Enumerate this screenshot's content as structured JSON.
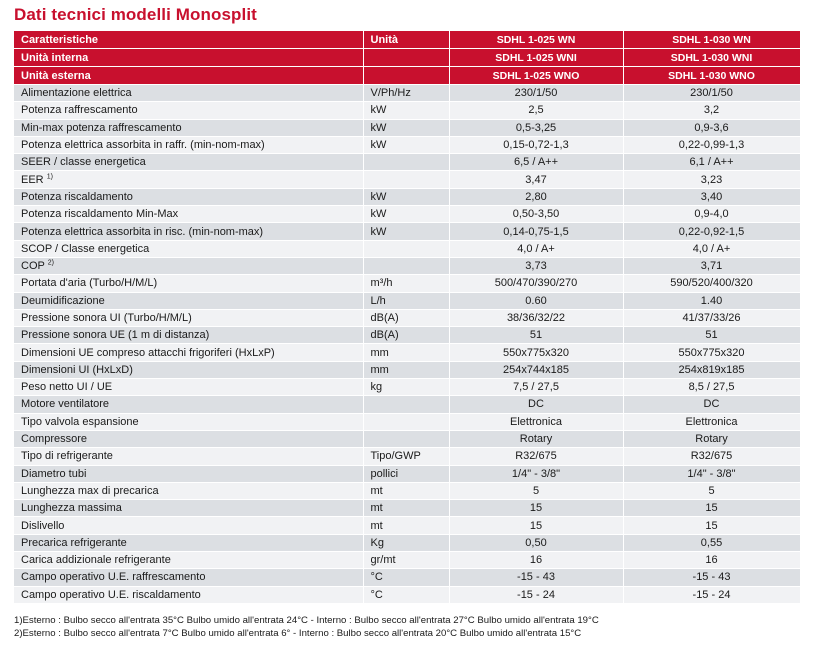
{
  "title": "Dati tecnici modelli Monosplit",
  "header_rows": [
    {
      "label": "Caratteristiche",
      "unit": "Unità",
      "m1": "SDHL 1-025 WN",
      "m2": "SDHL 1-030 WN"
    },
    {
      "label": "Unità interna",
      "unit": "",
      "m1": "SDHL 1-025 WNI",
      "m2": "SDHL 1-030 WNI"
    },
    {
      "label": "Unità esterna",
      "unit": "",
      "m1": "SDHL 1-025 WNO",
      "m2": "SDHL 1-030 WNO"
    }
  ],
  "rows": [
    {
      "label": "Alimentazione elettrica",
      "sup": "",
      "unit": "V/Ph/Hz",
      "m1": "230/1/50",
      "m2": "230/1/50"
    },
    {
      "label": "Potenza raffrescamento",
      "sup": "",
      "unit": "kW",
      "m1": "2,5",
      "m2": "3,2"
    },
    {
      "label": "Min-max potenza raffrescamento",
      "sup": "",
      "unit": "kW",
      "m1": "0,5-3,25",
      "m2": "0,9-3,6"
    },
    {
      "label": "Potenza elettrica assorbita in raffr. (min-nom-max)",
      "sup": "",
      "unit": "kW",
      "m1": "0,15-0,72-1,3",
      "m2": "0,22-0,99-1,3"
    },
    {
      "label": "SEER / classe energetica",
      "sup": "",
      "unit": "",
      "m1": "6,5 / A++",
      "m2": "6,1 / A++"
    },
    {
      "label": "EER",
      "sup": "1)",
      "unit": "",
      "m1": "3,47",
      "m2": "3,23"
    },
    {
      "label": "Potenza riscaldamento",
      "sup": "",
      "unit": "kW",
      "m1": "2,80",
      "m2": "3,40"
    },
    {
      "label": "Potenza riscaldamento Min-Max",
      "sup": "",
      "unit": "kW",
      "m1": "0,50-3,50",
      "m2": "0,9-4,0"
    },
    {
      "label": "Potenza elettrica assorbita in risc. (min-nom-max)",
      "sup": "",
      "unit": "kW",
      "m1": "0,14-0,75-1,5",
      "m2": "0,22-0,92-1,5"
    },
    {
      "label": "SCOP / Classe energetica",
      "sup": "",
      "unit": "",
      "m1": "4,0 / A+",
      "m2": "4,0 / A+"
    },
    {
      "label": "COP",
      "sup": "2)",
      "unit": "",
      "m1": "3,73",
      "m2": "3,71"
    },
    {
      "label": "Portata d'aria (Turbo/H/M/L)",
      "sup": "",
      "unit": "m³/h",
      "m1": "500/470/390/270",
      "m2": "590/520/400/320"
    },
    {
      "label": "Deumidificazione",
      "sup": "",
      "unit": "L/h",
      "m1": "0.60",
      "m2": "1.40"
    },
    {
      "label": "Pressione sonora UI (Turbo/H/M/L)",
      "sup": "",
      "unit": "dB(A)",
      "m1": "38/36/32/22",
      "m2": "41/37/33/26"
    },
    {
      "label": "Pressione sonora UE (1 m di distanza)",
      "sup": "",
      "unit": "dB(A)",
      "m1": "51",
      "m2": "51"
    },
    {
      "label": "Dimensioni UE compreso attacchi frigoriferi (HxLxP)",
      "sup": "",
      "unit": "mm",
      "m1": "550x775x320",
      "m2": "550x775x320"
    },
    {
      "label": "Dimensioni  UI (HxLxD)",
      "sup": "",
      "unit": "mm",
      "m1": "254x744x185",
      "m2": "254x819x185"
    },
    {
      "label": "Peso netto UI / UE",
      "sup": "",
      "unit": "kg",
      "m1": "7,5 / 27,5",
      "m2": "8,5 / 27,5"
    },
    {
      "label": "Motore ventilatore",
      "sup": "",
      "unit": "",
      "m1": "DC",
      "m2": "DC"
    },
    {
      "label": "Tipo valvola espansione",
      "sup": "",
      "unit": "",
      "m1": "Elettronica",
      "m2": "Elettronica"
    },
    {
      "label": "Compressore",
      "sup": "",
      "unit": "",
      "m1": "Rotary",
      "m2": "Rotary"
    },
    {
      "label": "Tipo di refrigerante",
      "sup": "",
      "unit": "Tipo/GWP",
      "m1": "R32/675",
      "m2": "R32/675"
    },
    {
      "label": "Diametro tubi",
      "sup": "",
      "unit": "pollici",
      "m1": "1/4\" - 3/8\"",
      "m2": "1/4\" - 3/8\""
    },
    {
      "label": "Lunghezza max di precarica",
      "sup": "",
      "unit": "mt",
      "m1": "5",
      "m2": "5"
    },
    {
      "label": "Lunghezza massima",
      "sup": "",
      "unit": "mt",
      "m1": "15",
      "m2": "15"
    },
    {
      "label": "Dislivello",
      "sup": "",
      "unit": "mt",
      "m1": "15",
      "m2": "15"
    },
    {
      "label": "Precarica refrigerante",
      "sup": "",
      "unit": "Kg",
      "m1": "0,50",
      "m2": "0,55"
    },
    {
      "label": "Carica addizionale refrigerante",
      "sup": "",
      "unit": "gr/mt",
      "m1": "16",
      "m2": "16"
    },
    {
      "label": "Campo operativo  U.E. raffrescamento",
      "sup": "",
      "unit": "°C",
      "m1": "-15 -  43",
      "m2": "-15 -  43"
    },
    {
      "label": "Campo operativo  U.E. riscaldamento",
      "sup": "",
      "unit": "°C",
      "m1": "-15 -  24",
      "m2": "-15 -  24"
    }
  ],
  "notes": [
    "1)Esterno : Bulbo secco all'entrata 35°C  Bulbo umido all'entrata 24°C  -  Interno : Bulbo secco all'entrata 27°C Bulbo umido all'entrata 19°C",
    "2)Esterno : Bulbo secco all'entrata 7°C  Bulbo umido all'entrata 6° -  Interno : Bulbo secco all'entrata 20°C Bulbo umido all'entrata 15°C"
  ],
  "colors": {
    "accent": "#c8102e",
    "row_odd": "#dcdfe3",
    "row_even": "#f1f2f4"
  }
}
